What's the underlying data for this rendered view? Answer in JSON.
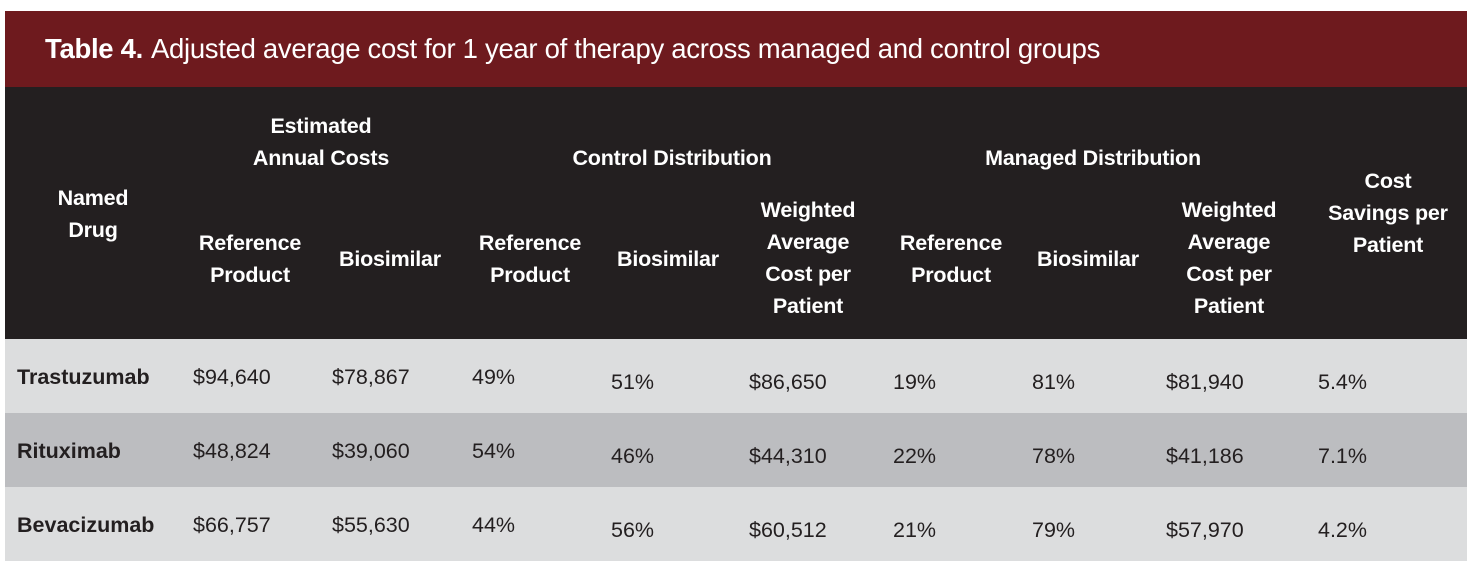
{
  "title": {
    "label": "Table 4.",
    "text": "Adjusted average cost for 1 year of therapy across managed and control groups"
  },
  "header": {
    "named_drug": [
      "Named",
      "Drug"
    ],
    "estimated_annual_costs": [
      "Estimated",
      "Annual Costs"
    ],
    "control_distribution": "Control Distribution",
    "managed_distribution": "Managed Distribution",
    "cost_savings": [
      "Cost",
      "Savings per",
      "Patient"
    ],
    "reference_product": [
      "Reference",
      "Product"
    ],
    "biosimilar": "Biosimilar",
    "weighted_average": [
      "Weighted",
      "Average",
      "Cost per",
      "Patient"
    ]
  },
  "rows": [
    {
      "drug": "Trastuzumab",
      "ref_cost": "$94,640",
      "bio_cost": "$78,867",
      "ctrl_ref": "49%",
      "ctrl_bio": "51%",
      "ctrl_wavg": "$86,650",
      "mgd_ref": "19%",
      "mgd_bio": "81%",
      "mgd_wavg": "$81,940",
      "savings": "5.4%"
    },
    {
      "drug": "Rituximab",
      "ref_cost": "$48,824",
      "bio_cost": "$39,060",
      "ctrl_ref": "54%",
      "ctrl_bio": "46%",
      "ctrl_wavg": "$44,310",
      "mgd_ref": "22%",
      "mgd_bio": "78%",
      "mgd_wavg": "$41,186",
      "savings": "7.1%"
    },
    {
      "drug": "Bevacizumab",
      "ref_cost": "$66,757",
      "bio_cost": "$55,630",
      "ctrl_ref": "44%",
      "ctrl_bio": "56%",
      "ctrl_wavg": "$60,512",
      "mgd_ref": "21%",
      "mgd_bio": "79%",
      "mgd_wavg": "$57,970",
      "savings": "4.2%"
    }
  ],
  "colors": {
    "title_bg": "#6e1a1e",
    "header_bg": "#231f20",
    "row_light": "#dcddde",
    "row_dark": "#bcbdc0"
  }
}
